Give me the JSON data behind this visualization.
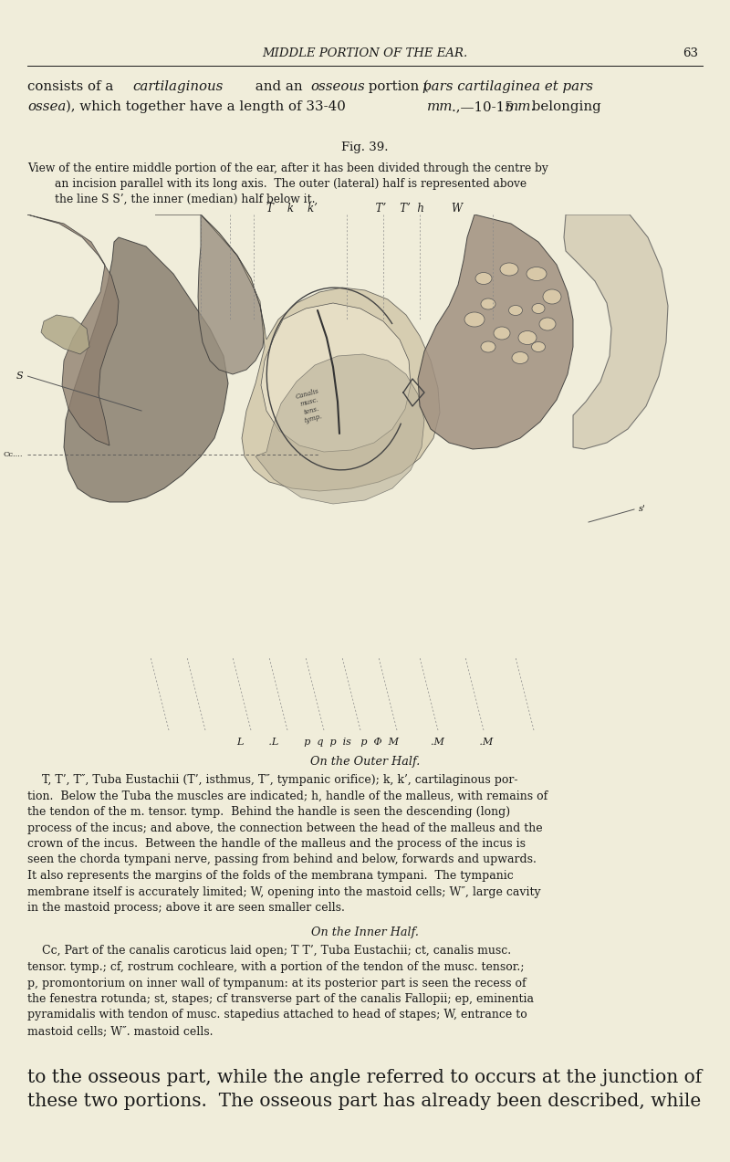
{
  "bg_color": "#f0edda",
  "text_color": "#1a1a1a",
  "page_width": 8.0,
  "page_height": 12.73,
  "dpi": 100,
  "header_text": "MIDDLE PORTION OF THE EAR.",
  "header_page": "63",
  "fig_caption": "Fig. 39.",
  "view_caption_lines": [
    "View of the entire middle portion of the ear, after it has been divided through the centre by",
    "an incision parallel with its long axis.  The outer (lateral) half is represented above",
    "the line S S’, the inner (median) half below it."
  ],
  "label_line_top": "T    k    k’                 T’    T’  h        W",
  "label_line_bottom": "L        .L        p  q  p  is   p  Φ  M          .M           .M",
  "outer_half_label": "On the Outer Half.",
  "outer_half_text_l1": "    T, T’, T″, Tuba Eustachii (T’, isthmus, T″, tympanic orifice); k, k’, cartilaginous por-",
  "outer_half_text": [
    "tion.  Below the Tuba the muscles are indicated; h, handle of the malleus, with remains of",
    "the tendon of the m. tensor. tymp.  Behind the handle is seen the descending (long)",
    "process of the incus; and above, the connection between the head of the malleus and the",
    "crown of the incus.  Between the handle of the malleus and the process of the incus is",
    "seen the chorda tympani nerve, passing from behind and below, forwards and upwards.",
    "It also represents the margins of the folds of the membrana tympani.  The tympanic",
    "membrane itself is accurately limited; W, opening into the mastoid cells; W″, large cavity",
    "in the mastoid process; above it are seen smaller cells."
  ],
  "inner_half_label": "On the Inner Half.",
  "inner_half_text_l1": "    Cc, Part of the canalis caroticus laid open; T T’, Tuba Eustachii; ct, canalis musc.",
  "inner_half_text": [
    "tensor. tymp.; cf, rostrum cochleare, with a portion of the tendon of the musc. tensor.;",
    "p, promontorium on inner wall of tympanum: at its posterior part is seen the recess of",
    "the fenestra rotunda; st, stapes; cf transverse part of the canalis Fallopii; ep, eminentia",
    "pyramidalis with tendon of musc. stapedius attached to head of stapes; W, entrance to",
    "mastoid cells; W″. mastoid cells."
  ],
  "footer_lines": [
    "to the osseous part, while the angle referred to occurs at the junction of",
    "these two portions.  The osseous part has already been described, while"
  ]
}
